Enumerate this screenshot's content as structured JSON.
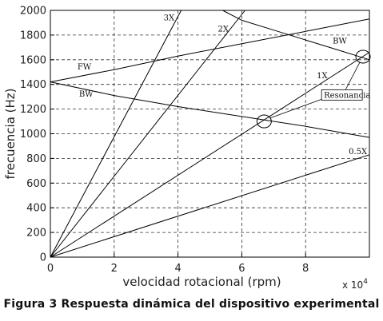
{
  "chart_data": {
    "type": "line",
    "title": "",
    "xlabel": "velocidad rotacional (rpm)",
    "ylabel": "frecuencia (Hz)",
    "x_multiplier": "x 10",
    "x_multiplier_exponent": "4",
    "xlim": [
      0,
      10
    ],
    "ylim": [
      0,
      2000
    ],
    "xticks": [
      0,
      2,
      4,
      6,
      8
    ],
    "yticks": [
      0,
      200,
      400,
      600,
      800,
      1000,
      1200,
      1400,
      1600,
      1800,
      2000
    ],
    "grid": true,
    "series": [
      {
        "name": "3X",
        "x": [
          0,
          4.1
        ],
        "y": [
          0,
          2000
        ]
      },
      {
        "name": "2X",
        "x": [
          0,
          6.1
        ],
        "y": [
          0,
          2000
        ]
      },
      {
        "name": "1X",
        "x": [
          0,
          10
        ],
        "y": [
          0,
          1660
        ]
      },
      {
        "name": "0.5X",
        "x": [
          0,
          10
        ],
        "y": [
          0,
          830
        ]
      },
      {
        "name": "FW",
        "x": [
          0,
          2,
          4,
          6,
          8,
          10
        ],
        "y": [
          1420,
          1520,
          1630,
          1730,
          1830,
          1930
        ]
      },
      {
        "name": "BW",
        "x": [
          0,
          2,
          4,
          6,
          8,
          10
        ],
        "y": [
          1420,
          1310,
          1220,
          1140,
          1060,
          970
        ]
      },
      {
        "name": "BW",
        "x": [
          5.4,
          6,
          7,
          8,
          9,
          10
        ],
        "y": [
          2000,
          1920,
          1840,
          1760,
          1680,
          1600
        ]
      }
    ],
    "annotations": [
      {
        "text": "Resonancia",
        "x": 6.7,
        "y": 1100
      },
      {
        "text": "Resonancia",
        "x": 9.8,
        "y": 1625
      }
    ]
  },
  "caption": "Figura 3 Respuesta dinámica del dispositivo experimental"
}
